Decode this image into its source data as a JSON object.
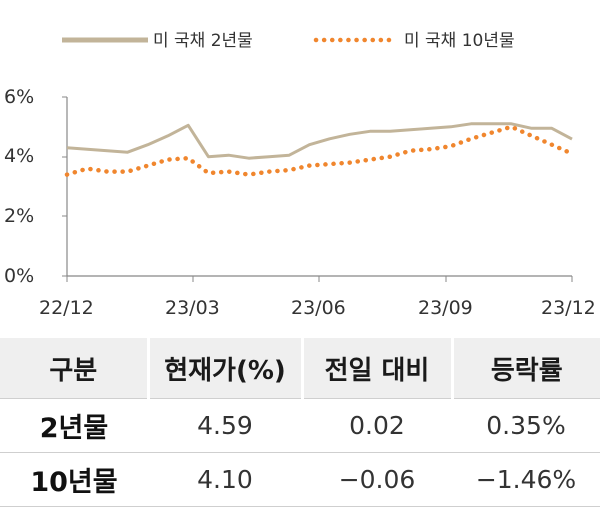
{
  "chart_data": {
    "type": "line",
    "title": "",
    "xlabel": "",
    "ylabel": "",
    "ylim": [
      0,
      6
    ],
    "yticks": [
      "0%",
      "2%",
      "4%",
      "6%"
    ],
    "xticks": [
      "22/12",
      "23/03",
      "23/06",
      "23/09",
      "23/12"
    ],
    "grid": false,
    "legend_position": "top",
    "series": [
      {
        "name": "미 국채 2년물",
        "style": "solid",
        "color": "#c2b499",
        "x": [
          "22/12",
          "22/12",
          "23/01",
          "23/01",
          "23/02",
          "23/02",
          "23/03",
          "23/03",
          "23/03",
          "23/04",
          "23/04",
          "23/05",
          "23/05",
          "23/06",
          "23/06",
          "23/07",
          "23/07",
          "23/08",
          "23/08",
          "23/09",
          "23/09",
          "23/10",
          "23/10",
          "23/11",
          "23/11",
          "23/12"
        ],
        "y": [
          4.3,
          4.25,
          4.2,
          4.15,
          4.4,
          4.7,
          5.05,
          4.0,
          4.05,
          3.95,
          4.0,
          4.05,
          4.4,
          4.6,
          4.75,
          4.85,
          4.85,
          4.9,
          4.95,
          5.0,
          5.1,
          5.1,
          5.1,
          4.95,
          4.95,
          4.59
        ]
      },
      {
        "name": "미 국채 10년물",
        "style": "dotted",
        "color": "#f0862e",
        "x": [
          "22/12",
          "22/12",
          "23/01",
          "23/01",
          "23/02",
          "23/02",
          "23/03",
          "23/03",
          "23/03",
          "23/04",
          "23/04",
          "23/05",
          "23/05",
          "23/06",
          "23/06",
          "23/07",
          "23/07",
          "23/08",
          "23/08",
          "23/09",
          "23/09",
          "23/10",
          "23/10",
          "23/11",
          "23/11",
          "23/12"
        ],
        "y": [
          3.4,
          3.6,
          3.5,
          3.5,
          3.7,
          3.9,
          3.95,
          3.45,
          3.5,
          3.4,
          3.5,
          3.55,
          3.7,
          3.75,
          3.8,
          3.9,
          4.0,
          4.2,
          4.25,
          4.35,
          4.6,
          4.8,
          5.0,
          4.7,
          4.4,
          4.1
        ]
      }
    ]
  },
  "table": {
    "headers": [
      "구분",
      "현재가(%)",
      "전일 대비",
      "등락률"
    ],
    "rows": [
      {
        "name": "2년물",
        "price": "4.59",
        "change": "0.02",
        "rate": "0.35%"
      },
      {
        "name": "10년물",
        "price": "4.10",
        "change": "−0.06",
        "rate": "−1.46%"
      }
    ]
  }
}
